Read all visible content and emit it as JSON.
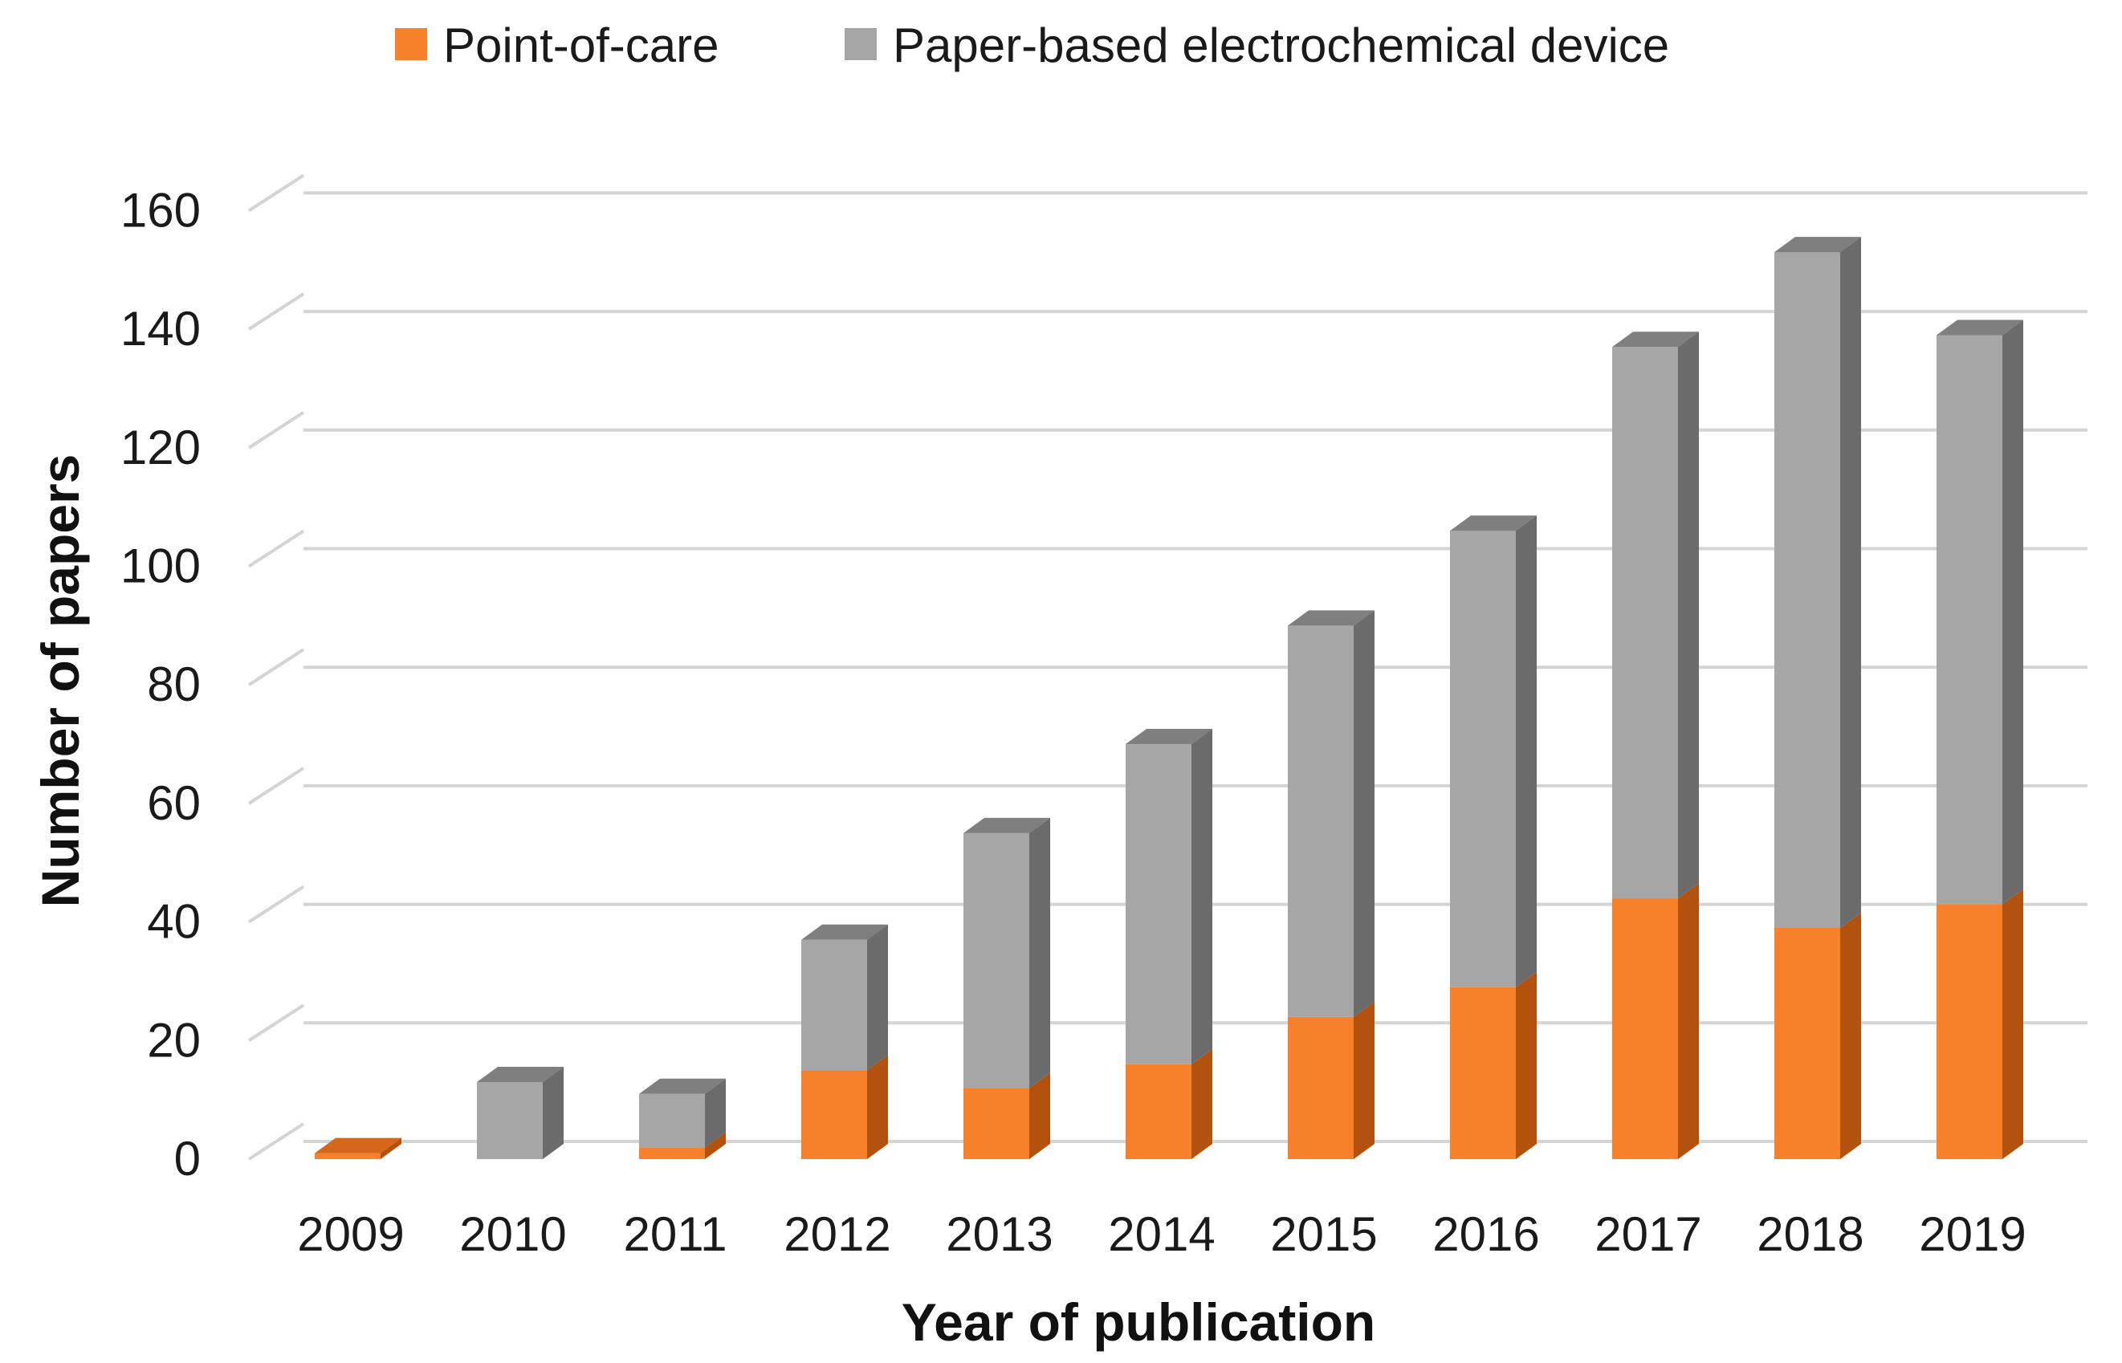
{
  "chart_data": {
    "type": "bar",
    "stacked": true,
    "style": "3d-column",
    "categories": [
      "2009",
      "2010",
      "2011",
      "2012",
      "2013",
      "2014",
      "2015",
      "2016",
      "2017",
      "2018",
      "2019"
    ],
    "series": [
      {
        "name": "Point-of-care",
        "color": "#f7812a",
        "side_color": "#b3520f",
        "top_color": "#d6661a",
        "values": [
          1,
          0,
          2,
          15,
          12,
          16,
          24,
          29,
          44,
          39,
          43
        ]
      },
      {
        "name": "Paper-based electrochemical device",
        "color": "#a6a6a6",
        "side_color": "#6b6b6b",
        "top_color": "#7f7f7f",
        "values": [
          0,
          13,
          9,
          22,
          43,
          54,
          66,
          77,
          93,
          114,
          96
        ]
      }
    ],
    "xlabel": "Year of publication",
    "ylabel": "Number of papers",
    "ylim": [
      0,
      160
    ],
    "yticks": [
      0,
      20,
      40,
      60,
      80,
      100,
      120,
      140,
      160
    ],
    "grid": true,
    "legend_position": "top-center"
  }
}
